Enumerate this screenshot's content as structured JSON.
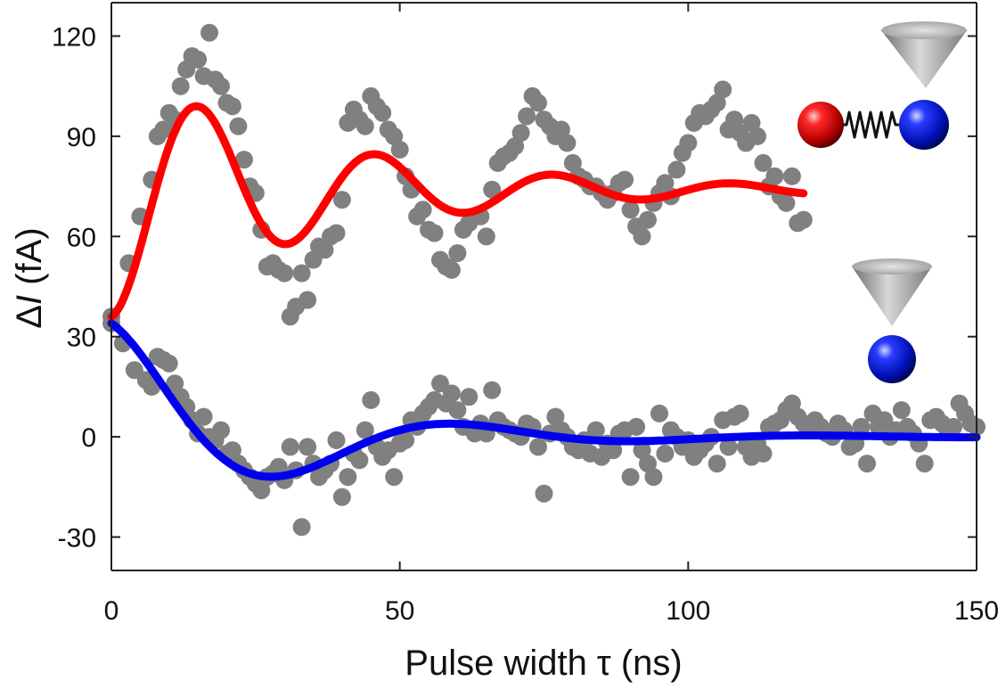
{
  "chart_data": {
    "type": "scatter",
    "title": "",
    "xlabel": "Pulse width τ (ns)",
    "ylabel_prefix": "Δ",
    "ylabel_var": "I",
    "ylabel_suffix": " (fA)",
    "xlim": [
      0,
      150
    ],
    "ylim": [
      -40,
      130
    ],
    "xticks": [
      0,
      50,
      100,
      150
    ],
    "xtick_labels": [
      "0",
      "50",
      "100",
      "150"
    ],
    "yticks": [
      -30,
      0,
      30,
      60,
      90,
      120
    ],
    "ytick_labels": [
      "-30",
      "0",
      "30",
      "60",
      "90",
      "120"
    ],
    "grid": false,
    "colors": {
      "points": "#808080",
      "fit_coupled": "#ff0000",
      "fit_single": "#0000ee",
      "spin_red": "#cc0000",
      "spin_blue": "#0018c8",
      "tip": "#a8a8a8",
      "axis": "#222222"
    },
    "series": [
      {
        "name": "coupled spins data",
        "kind": "scatter",
        "x": [
          0,
          3,
          5,
          7,
          8,
          9,
          10,
          11,
          12,
          13,
          14,
          15,
          16,
          17,
          18,
          19,
          20,
          21,
          22,
          23,
          24,
          25,
          26,
          27,
          28,
          29,
          30,
          31,
          32,
          33,
          34,
          35,
          36,
          37,
          38,
          39,
          40,
          41,
          42,
          43,
          44,
          45,
          46,
          47,
          48,
          49,
          50,
          51,
          52,
          53,
          54,
          55,
          56,
          57,
          58,
          59,
          60,
          61,
          62,
          63,
          64,
          65,
          66,
          67,
          68,
          69,
          70,
          71,
          72,
          73,
          74,
          75,
          76,
          77,
          78,
          79,
          80,
          81,
          82,
          83,
          84,
          85,
          86,
          87,
          88,
          89,
          90,
          91,
          92,
          93,
          94,
          95,
          96,
          97,
          98,
          99,
          100,
          101,
          102,
          103,
          104,
          105,
          106,
          107,
          108,
          109,
          110,
          111,
          112,
          113,
          114,
          115,
          116,
          117,
          118,
          119,
          120
        ],
        "y": [
          36,
          52,
          66,
          77,
          90,
          92,
          97,
          95,
          105,
          110,
          114,
          113,
          108,
          121,
          107,
          105,
          100,
          99,
          93,
          83,
          75,
          73,
          62,
          51,
          52,
          50,
          49,
          36,
          39,
          49,
          41,
          53,
          57,
          56,
          60,
          61,
          71,
          94,
          98,
          95,
          93,
          102,
          99,
          97,
          92,
          90,
          86,
          78,
          74,
          66,
          68,
          62,
          61,
          53,
          51,
          50,
          55,
          62,
          64,
          66,
          66,
          60,
          74,
          82,
          84,
          85,
          87,
          91,
          96,
          102,
          100,
          95,
          93,
          90,
          92,
          88,
          82,
          78,
          77,
          75,
          75,
          73,
          71,
          73,
          76,
          77,
          68,
          63,
          60,
          65,
          70,
          73,
          76,
          72,
          80,
          85,
          88,
          94,
          97,
          96,
          98,
          100,
          104,
          92,
          95,
          91,
          88,
          94,
          90,
          82,
          75,
          78,
          72,
          70,
          78,
          64,
          65
        ]
      },
      {
        "name": "single spin data",
        "kind": "scatter",
        "x": [
          0,
          2,
          4,
          6,
          7,
          8,
          9,
          10,
          11,
          12,
          13,
          14,
          15,
          16,
          17,
          18,
          19,
          20,
          21,
          22,
          23,
          24,
          25,
          26,
          27,
          28,
          29,
          30,
          31,
          32,
          33,
          34,
          35,
          36,
          37,
          38,
          39,
          40,
          41,
          42,
          43,
          44,
          45,
          46,
          47,
          48,
          49,
          50,
          51,
          52,
          53,
          54,
          55,
          56,
          57,
          58,
          59,
          60,
          61,
          62,
          63,
          64,
          65,
          66,
          67,
          68,
          69,
          70,
          71,
          72,
          73,
          74,
          75,
          76,
          77,
          78,
          79,
          80,
          81,
          82,
          83,
          84,
          85,
          86,
          87,
          88,
          89,
          90,
          91,
          92,
          93,
          94,
          95,
          96,
          97,
          98,
          99,
          100,
          101,
          102,
          103,
          104,
          105,
          106,
          107,
          108,
          109,
          110,
          111,
          112,
          113,
          114,
          115,
          116,
          117,
          118,
          119,
          120,
          121,
          122,
          123,
          124,
          125,
          126,
          127,
          128,
          129,
          130,
          131,
          132,
          133,
          134,
          135,
          136,
          137,
          138,
          139,
          140,
          141,
          142,
          143,
          144,
          145,
          146,
          147,
          148,
          149,
          150
        ],
        "y": [
          34,
          28,
          20,
          17,
          15,
          24,
          23,
          22,
          16,
          12,
          9,
          5,
          1,
          6,
          0,
          -1,
          2,
          -5,
          -4,
          -8,
          -10,
          -12,
          -14,
          -16,
          -12,
          -11,
          -9,
          -13,
          -3,
          -10,
          -27,
          -3,
          -8,
          -12,
          -10,
          -8,
          -1,
          -18,
          -12,
          -5,
          -7,
          2,
          11,
          -3,
          -6,
          -4,
          -12,
          -2,
          -1,
          5,
          3,
          7,
          9,
          11,
          16,
          10,
          13,
          8,
          3,
          12,
          1,
          4,
          1,
          14,
          5,
          3,
          2,
          1,
          0,
          4,
          3,
          -3,
          -17,
          1,
          6,
          2,
          0,
          -3,
          -4,
          -1,
          -5,
          2,
          -6,
          -2,
          -4,
          1,
          2,
          -12,
          3,
          -4,
          -8,
          -12,
          7,
          -5,
          2,
          0,
          -3,
          -1,
          -6,
          -4,
          -2,
          0,
          -8,
          5,
          -3,
          6,
          7,
          -3,
          -6,
          -2,
          -5,
          3,
          4,
          5,
          8,
          10,
          6,
          4,
          2,
          5,
          3,
          1,
          0,
          4,
          2,
          -3,
          -2,
          3,
          -8,
          7,
          3,
          5,
          0,
          2,
          8,
          3,
          1,
          -2,
          -8,
          5,
          6,
          4,
          2,
          3,
          10,
          7,
          4,
          3
        ]
      },
      {
        "name": "coupled spins fit",
        "kind": "line",
        "baseline": 74,
        "decay_ns": 36,
        "amp_osc": -38,
        "period_ns": 30.8,
        "rise_ns": 4,
        "x_range": [
          0,
          120
        ]
      },
      {
        "name": "single spin fit",
        "kind": "line",
        "amp": 34,
        "decay_ns": 28,
        "period_ns": 62,
        "x_range": [
          0,
          150
        ]
      }
    ],
    "insets": [
      {
        "name": "coupled-spins-schematic",
        "content": "STM tip above a red spin coupled by a spring to a blue spin"
      },
      {
        "name": "single-spin-schematic",
        "content": "STM tip above a single blue spin"
      }
    ]
  }
}
